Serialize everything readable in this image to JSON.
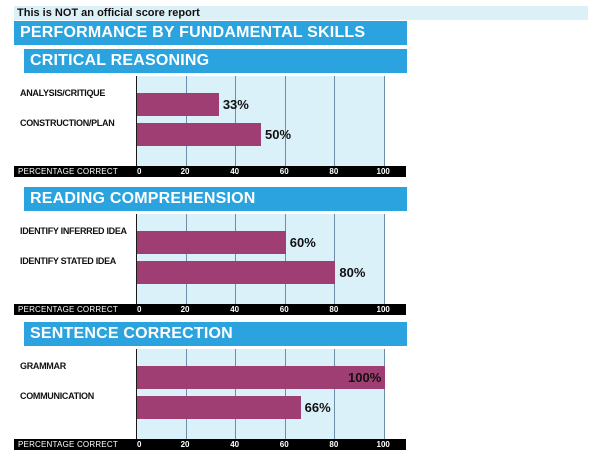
{
  "disclaimer": "This is NOT an official score report",
  "main_title": "PERFORMANCE BY FUNDAMENTAL SKILLS",
  "colors": {
    "header_bg": "#2aa3df",
    "panel_bg": "#daf1fa",
    "bar": "#9e3e72",
    "axis_strip": "#000000",
    "disclaimer_bg": "#dcf0f8"
  },
  "chart_data": [
    {
      "type": "bar",
      "orientation": "horizontal",
      "title": "CRITICAL REASONING",
      "categories": [
        "ANALYSIS/CRITIQUE",
        "CONSTRUCTION/PLAN"
      ],
      "values": [
        33,
        50
      ],
      "value_labels": [
        "33%",
        "50%"
      ],
      "xlabel": "PERCENTAGE CORRECT",
      "xlim": [
        0,
        100
      ],
      "ticks": [
        0,
        20,
        40,
        60,
        80,
        100
      ],
      "grid": true
    },
    {
      "type": "bar",
      "orientation": "horizontal",
      "title": "READING COMPREHENSION",
      "categories": [
        "IDENTIFY INFERRED IDEA",
        "IDENTIFY STATED IDEA"
      ],
      "values": [
        60,
        80
      ],
      "value_labels": [
        "60%",
        "80%"
      ],
      "xlabel": "PERCENTAGE CORRECT",
      "xlim": [
        0,
        100
      ],
      "ticks": [
        0,
        20,
        40,
        60,
        80,
        100
      ],
      "grid": true
    },
    {
      "type": "bar",
      "orientation": "horizontal",
      "title": "SENTENCE CORRECTION",
      "categories": [
        "GRAMMAR",
        "COMMUNICATION"
      ],
      "values": [
        100,
        66
      ],
      "value_labels": [
        "100%",
        "66%"
      ],
      "xlabel": "PERCENTAGE CORRECT",
      "xlim": [
        0,
        100
      ],
      "ticks": [
        0,
        20,
        40,
        60,
        80,
        100
      ],
      "grid": true
    }
  ]
}
